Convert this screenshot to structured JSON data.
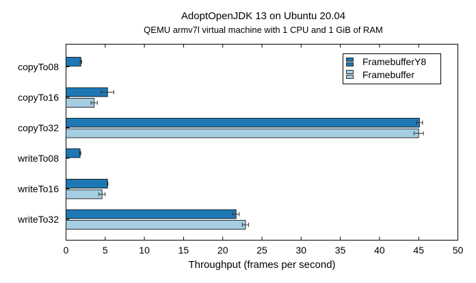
{
  "chart_data": {
    "type": "bar",
    "orientation": "horizontal",
    "title": "AdoptOpenJDK 13 on Ubuntu 20.04",
    "subtitle": "QEMU armv7l virtual machine with 1 CPU and 1 GiB of RAM",
    "xlabel": "Throughput (frames per second)",
    "ylabel": "",
    "xlim": [
      0,
      50
    ],
    "xticks": [
      "0",
      "5",
      "10",
      "15",
      "20",
      "25",
      "30",
      "35",
      "40",
      "45",
      "50"
    ],
    "categories": [
      "copyTo08",
      "copyTo16",
      "copyTo32",
      "writeTo08",
      "writeTo16",
      "writeTo32"
    ],
    "series": [
      {
        "name": "FramebufferY8",
        "color": "#1f78b4",
        "values": [
          1.9,
          5.3,
          45.1,
          1.8,
          5.3,
          21.7
        ],
        "errors": [
          0.1,
          0.8,
          0.4,
          0.1,
          0.05,
          0.4
        ]
      },
      {
        "name": "Framebuffer",
        "color": "#a6cee3",
        "values": [
          null,
          3.6,
          45.0,
          null,
          4.6,
          22.9
        ],
        "errors": [
          null,
          0.4,
          0.6,
          null,
          0.4,
          0.4
        ]
      }
    ],
    "legend_position": "top-right",
    "grid": false
  }
}
